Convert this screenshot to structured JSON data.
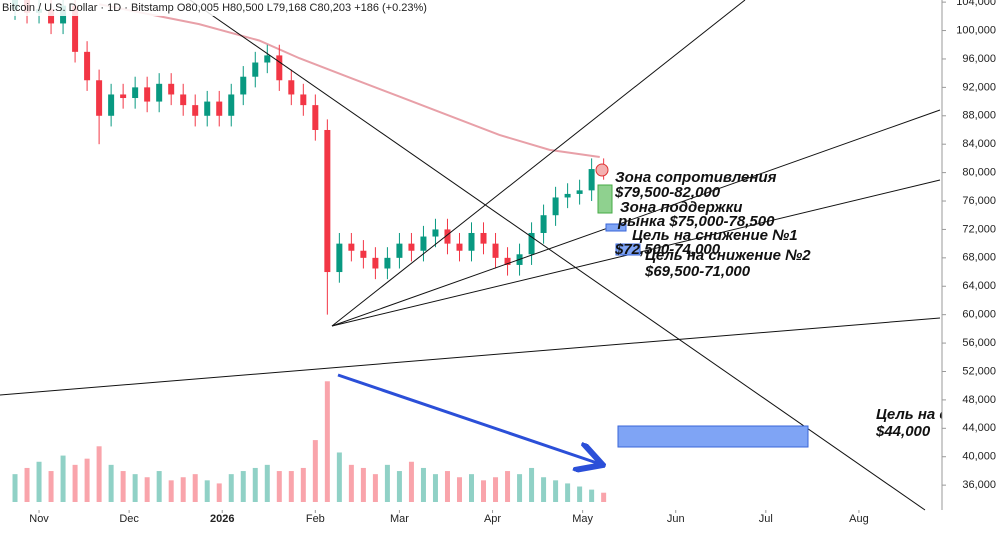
{
  "chart_data": {
    "type": "candlestick",
    "title": "Bitcoin / U.S. Dollar · 1D · Bitstamp  O80,005  H80,500  L79,168  C80,203  +186 (+0.23%)",
    "up_color": "#089981",
    "down_color": "#f23645",
    "xlim": [
      -13,
      300
    ],
    "xticks": [
      {
        "value": 0,
        "label": "Nov"
      },
      {
        "value": 30,
        "label": "Dec"
      },
      {
        "value": 61,
        "label": "2026"
      },
      {
        "value": 92,
        "label": "Feb"
      },
      {
        "value": 120,
        "label": "Mar"
      },
      {
        "value": 151,
        "label": "Apr"
      },
      {
        "value": 181,
        "label": "May"
      },
      {
        "value": 212,
        "label": "Jun"
      },
      {
        "value": 242,
        "label": "Jul"
      },
      {
        "value": 273,
        "label": "Aug"
      }
    ],
    "ylim": [
      32500,
      104300
    ],
    "yticks": [
      {
        "value": 36000,
        "label": "36,000"
      },
      {
        "value": 40000,
        "label": "40,000"
      },
      {
        "value": 44000,
        "label": "44,000"
      },
      {
        "value": 48000,
        "label": "48,000"
      },
      {
        "value": 52000,
        "label": "52,000"
      },
      {
        "value": 56000,
        "label": "56,000"
      },
      {
        "value": 60000,
        "label": "60,000"
      },
      {
        "value": 64000,
        "label": "64,000"
      },
      {
        "value": 68000,
        "label": "68,000"
      },
      {
        "value": 72000,
        "label": "72,000"
      },
      {
        "value": 76000,
        "label": "76,000"
      },
      {
        "value": 80000,
        "label": "80,000"
      },
      {
        "value": 84000,
        "label": "84,000"
      },
      {
        "value": 88000,
        "label": "88,000"
      },
      {
        "value": 92000,
        "label": "92,000"
      },
      {
        "value": 96000,
        "label": "96,000"
      },
      {
        "value": 100000,
        "label": "100,000"
      },
      {
        "value": 104000,
        "label": "104,000"
      }
    ],
    "x": [
      -8,
      -4,
      0,
      4,
      8,
      12,
      16,
      20,
      24,
      28,
      32,
      36,
      40,
      44,
      48,
      52,
      56,
      60,
      64,
      68,
      72,
      76,
      80,
      84,
      88,
      92,
      96,
      100,
      104,
      108,
      112,
      116,
      120,
      124,
      128,
      132,
      136,
      140,
      144,
      148,
      152,
      156,
      160,
      164,
      168,
      172,
      176,
      180,
      184,
      188
    ],
    "ohlc": [
      [
        103000,
        106000,
        101500,
        104500
      ],
      [
        104500,
        106000,
        101000,
        102500
      ],
      [
        102500,
        105500,
        101000,
        103000
      ],
      [
        103000,
        104500,
        99500,
        101000
      ],
      [
        101000,
        106000,
        99500,
        103500
      ],
      [
        103500,
        105000,
        95500,
        97000
      ],
      [
        97000,
        98500,
        91500,
        93000
      ],
      [
        93000,
        94500,
        84000,
        88000
      ],
      [
        88000,
        92500,
        86500,
        91000
      ],
      [
        91000,
        92500,
        89000,
        90500
      ],
      [
        90500,
        93500,
        89000,
        92000
      ],
      [
        92000,
        93500,
        88500,
        90000
      ],
      [
        90000,
        94000,
        88500,
        92500
      ],
      [
        92500,
        94000,
        89500,
        91000
      ],
      [
        91000,
        92500,
        88000,
        89500
      ],
      [
        89500,
        91000,
        86500,
        88000
      ],
      [
        88000,
        91500,
        86500,
        90000
      ],
      [
        90000,
        91500,
        86500,
        88000
      ],
      [
        88000,
        92500,
        86500,
        91000
      ],
      [
        91000,
        95000,
        89500,
        93500
      ],
      [
        93500,
        97000,
        92000,
        95500
      ],
      [
        95500,
        98000,
        94000,
        96500
      ],
      [
        96500,
        98000,
        91500,
        93000
      ],
      [
        93000,
        94500,
        89500,
        91000
      ],
      [
        91000,
        92500,
        88000,
        89500
      ],
      [
        89500,
        91000,
        84500,
        86000
      ],
      [
        86000,
        87500,
        60000,
        66000
      ],
      [
        66000,
        71500,
        64500,
        70000
      ],
      [
        70000,
        71500,
        67500,
        69000
      ],
      [
        69000,
        70500,
        66500,
        68000
      ],
      [
        68000,
        69500,
        65000,
        66500
      ],
      [
        66500,
        69500,
        65000,
        68000
      ],
      [
        68000,
        71500,
        66500,
        70000
      ],
      [
        70000,
        71500,
        67500,
        69000
      ],
      [
        69000,
        72500,
        67500,
        71000
      ],
      [
        71000,
        73500,
        69500,
        72000
      ],
      [
        72000,
        73500,
        68500,
        70000
      ],
      [
        70000,
        71500,
        67500,
        69000
      ],
      [
        69000,
        73000,
        67500,
        71500
      ],
      [
        71500,
        73000,
        68500,
        70000
      ],
      [
        70000,
        71500,
        66500,
        68000
      ],
      [
        68000,
        69500,
        65500,
        67000
      ],
      [
        67000,
        70000,
        65500,
        68500
      ],
      [
        68500,
        73000,
        67000,
        71500
      ],
      [
        71500,
        75500,
        70000,
        74000
      ],
      [
        74000,
        78000,
        72500,
        76500
      ],
      [
        76500,
        78500,
        75000,
        77000
      ],
      [
        77000,
        79000,
        75500,
        77500
      ],
      [
        77500,
        82000,
        76000,
        80500
      ],
      [
        80500,
        82000,
        79000,
        80200
      ]
    ],
    "volume_ylim": [
      0,
      4200
    ],
    "volume": [
      900,
      1100,
      1300,
      1000,
      1500,
      1200,
      1400,
      1800,
      1200,
      1000,
      900,
      800,
      1000,
      700,
      800,
      900,
      700,
      600,
      900,
      1000,
      1100,
      1200,
      1000,
      1000,
      1100,
      2000,
      3900,
      1600,
      1200,
      1100,
      900,
      1200,
      1000,
      1300,
      1100,
      900,
      1000,
      800,
      900,
      700,
      800,
      1000,
      900,
      1100,
      800,
      700,
      600,
      500,
      400,
      300
    ],
    "ma": {
      "color": "#e8a0a8",
      "x": [
        20,
        53.3,
        73.3,
        86.7,
        103.3,
        120,
        136.7,
        153.3,
        170,
        186.7
      ],
      "values": [
        103700,
        100900,
        98600,
        96100,
        93400,
        90700,
        88000,
        85300,
        83200,
        82200
      ]
    },
    "annotations": [
      [
        "Зона сопротивления",
        "$79,500-82,000"
      ],
      [
        "Зона поддержки",
        "рынка $75,000-78,500"
      ],
      [
        "Цель на снижение №1",
        "$72,500-74,000"
      ],
      [
        "Цель на снижение №2",
        "$69,500-71,000"
      ],
      [
        "Цель на с",
        "$44,000"
      ]
    ]
  }
}
